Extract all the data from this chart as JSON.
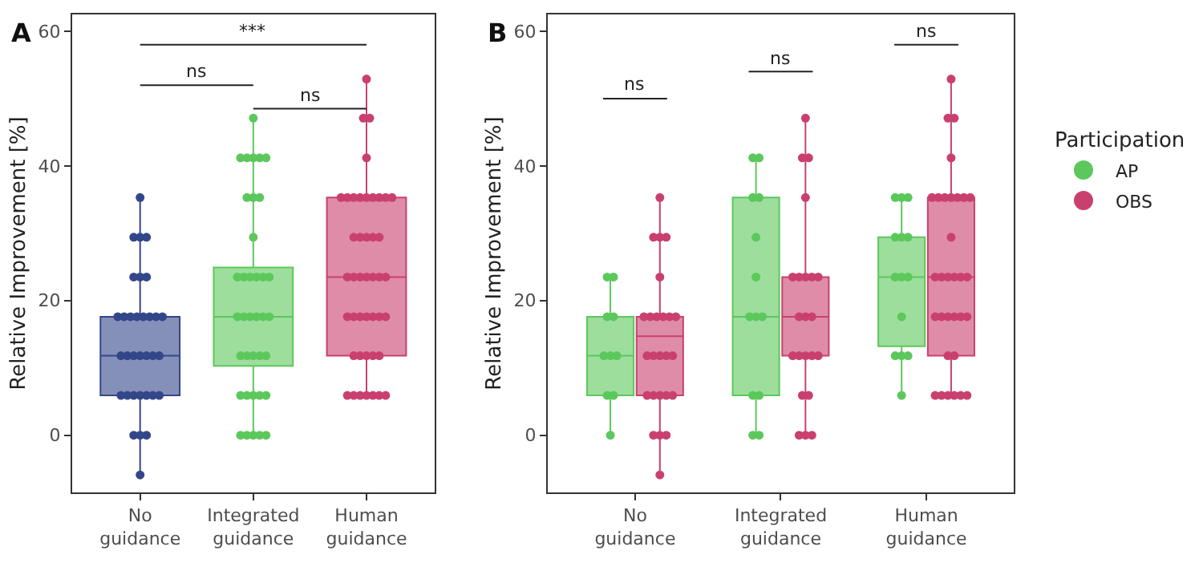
{
  "chart_data": [
    {
      "type": "box",
      "title": "A",
      "ylabel": "Relative Improvement [%]",
      "categories": [
        "No guidance",
        "Integrated guidance",
        "Human guidance"
      ],
      "colors": [
        "#34468a",
        "#5cc85c",
        "#c9406f"
      ],
      "boxes": [
        {
          "low": -5.9,
          "q1": 5.9,
          "median": 11.8,
          "q3": 17.6,
          "high": 35.3
        },
        {
          "low": 0,
          "q1": 10.3,
          "median": 17.6,
          "q3": 24.9,
          "high": 47.1
        },
        {
          "low": 5.9,
          "q1": 11.8,
          "median": 23.5,
          "q3": 35.3,
          "high": 52.9
        }
      ],
      "series": [
        {
          "type": "scatter",
          "color": "#34468a",
          "x": [
            "No guidance",
            "No guidance",
            "No guidance",
            "No guidance",
            "No guidance",
            "No guidance",
            "No guidance",
            "No guidance",
            "No guidance",
            "No guidance",
            "No guidance",
            "No guidance",
            "No guidance",
            "No guidance",
            "No guidance",
            "No guidance",
            "No guidance",
            "No guidance",
            "No guidance",
            "No guidance",
            "No guidance",
            "No guidance",
            "No guidance",
            "No guidance",
            "No guidance",
            "No guidance",
            "No guidance",
            "No guidance",
            "No guidance",
            "No guidance",
            "No guidance",
            "No guidance",
            "No guidance"
          ],
          "values": [
            35.3,
            29.4,
            29.4,
            29.4,
            23.5,
            23.5,
            23.5,
            17.6,
            17.6,
            17.6,
            17.6,
            17.6,
            17.6,
            17.6,
            17.6,
            11.8,
            11.8,
            11.8,
            11.8,
            11.8,
            11.8,
            11.8,
            5.9,
            5.9,
            5.9,
            5.9,
            5.9,
            5.9,
            5.9,
            0,
            0,
            0,
            -5.9
          ]
        },
        {
          "type": "scatter",
          "color": "#5cc85c",
          "x": [
            "Integrated guidance",
            "Integrated guidance",
            "Integrated guidance",
            "Integrated guidance",
            "Integrated guidance",
            "Integrated guidance",
            "Integrated guidance",
            "Integrated guidance",
            "Integrated guidance",
            "Integrated guidance",
            "Integrated guidance",
            "Integrated guidance",
            "Integrated guidance",
            "Integrated guidance",
            "Integrated guidance",
            "Integrated guidance",
            "Integrated guidance",
            "Integrated guidance",
            "Integrated guidance",
            "Integrated guidance",
            "Integrated guidance",
            "Integrated guidance",
            "Integrated guidance",
            "Integrated guidance",
            "Integrated guidance",
            "Integrated guidance",
            "Integrated guidance",
            "Integrated guidance",
            "Integrated guidance",
            "Integrated guidance",
            "Integrated guidance",
            "Integrated guidance",
            "Integrated guidance",
            "Integrated guidance",
            "Integrated guidance",
            "Integrated guidance",
            "Integrated guidance"
          ],
          "values": [
            47.1,
            41.2,
            41.2,
            41.2,
            41.2,
            41.2,
            35.3,
            35.3,
            35.3,
            29.4,
            23.5,
            23.5,
            23.5,
            23.5,
            23.5,
            23.5,
            17.6,
            17.6,
            17.6,
            17.6,
            17.6,
            17.6,
            11.8,
            11.8,
            11.8,
            11.8,
            11.8,
            5.9,
            5.9,
            5.9,
            5.9,
            5.9,
            0,
            0,
            0,
            0,
            0
          ]
        },
        {
          "type": "scatter",
          "color": "#c9406f",
          "x": [
            "Human guidance",
            "Human guidance",
            "Human guidance",
            "Human guidance",
            "Human guidance",
            "Human guidance",
            "Human guidance",
            "Human guidance",
            "Human guidance",
            "Human guidance",
            "Human guidance",
            "Human guidance",
            "Human guidance",
            "Human guidance",
            "Human guidance",
            "Human guidance",
            "Human guidance",
            "Human guidance",
            "Human guidance",
            "Human guidance",
            "Human guidance",
            "Human guidance",
            "Human guidance",
            "Human guidance",
            "Human guidance",
            "Human guidance",
            "Human guidance",
            "Human guidance",
            "Human guidance",
            "Human guidance",
            "Human guidance",
            "Human guidance",
            "Human guidance",
            "Human guidance",
            "Human guidance",
            "Human guidance",
            "Human guidance",
            "Human guidance",
            "Human guidance",
            "Human guidance",
            "Human guidance",
            "Human guidance",
            "Human guidance",
            "Human guidance"
          ],
          "values": [
            52.9,
            47.1,
            47.1,
            41.2,
            35.3,
            35.3,
            35.3,
            35.3,
            35.3,
            35.3,
            35.3,
            35.3,
            35.3,
            29.4,
            29.4,
            29.4,
            29.4,
            29.4,
            23.5,
            23.5,
            23.5,
            23.5,
            23.5,
            23.5,
            23.5,
            17.6,
            17.6,
            17.6,
            17.6,
            17.6,
            17.6,
            17.6,
            11.8,
            11.8,
            11.8,
            11.8,
            11.8,
            5.9,
            5.9,
            5.9,
            5.9,
            5.9,
            5.9,
            5.9
          ]
        }
      ],
      "annotations": [
        "ns",
        "ns",
        "***"
      ],
      "ylim": [
        -8.5,
        62.5
      ],
      "yticks": [
        0,
        20,
        40,
        60
      ]
    },
    {
      "type": "box",
      "title": "B",
      "ylabel": "Relative Improvement [%]",
      "legend_title": "Participation",
      "legend": "right",
      "categories": [
        "No guidance",
        "Integrated guidance",
        "Human guidance"
      ],
      "series": [
        {
          "name": "AP",
          "color": "#5cc85c",
          "boxes": [
            {
              "low": 0,
              "q1": 5.9,
              "median": 11.8,
              "q3": 17.6,
              "high": 23.5
            },
            {
              "low": 0,
              "q1": 5.9,
              "median": 17.6,
              "q3": 35.3,
              "high": 41.2
            },
            {
              "low": 5.9,
              "q1": 13.2,
              "median": 23.5,
              "q3": 29.4,
              "high": 35.3
            }
          ]
        },
        {
          "name": "OBS",
          "color": "#c9406f",
          "boxes": [
            {
              "low": -5.9,
              "q1": 5.9,
              "median": 14.7,
              "q3": 17.6,
              "high": 35.3
            },
            {
              "low": 0,
              "q1": 11.8,
              "median": 17.6,
              "q3": 23.5,
              "high": 47.1
            },
            {
              "low": 5.9,
              "q1": 11.8,
              "median": 23.5,
              "q3": 35.3,
              "high": 52.9
            }
          ]
        },
        {
          "type": "scatter",
          "color": "#5cc85c",
          "x": [
            "No guidance",
            "No guidance",
            "No guidance",
            "No guidance",
            "No guidance",
            "No guidance",
            "No guidance",
            "No guidance",
            "No guidance",
            "No guidance"
          ],
          "values": [
            23.5,
            23.5,
            17.6,
            17.6,
            11.8,
            11.8,
            11.8,
            5.9,
            5.9,
            0
          ]
        },
        {
          "type": "scatter",
          "color": "#5cc85c",
          "x": [
            "Integrated guidance",
            "Integrated guidance",
            "Integrated guidance",
            "Integrated guidance",
            "Integrated guidance",
            "Integrated guidance",
            "Integrated guidance",
            "Integrated guidance",
            "Integrated guidance",
            "Integrated guidance",
            "Integrated guidance",
            "Integrated guidance",
            "Integrated guidance"
          ],
          "values": [
            41.2,
            41.2,
            35.3,
            35.3,
            29.4,
            23.5,
            17.6,
            17.6,
            17.6,
            5.9,
            5.9,
            0,
            0
          ]
        },
        {
          "type": "scatter",
          "color": "#5cc85c",
          "x": [
            "Human guidance",
            "Human guidance",
            "Human guidance",
            "Human guidance",
            "Human guidance",
            "Human guidance",
            "Human guidance",
            "Human guidance",
            "Human guidance",
            "Human guidance",
            "Human guidance",
            "Human guidance",
            "Human guidance",
            "Human guidance"
          ],
          "values": [
            35.3,
            35.3,
            35.3,
            29.4,
            29.4,
            29.4,
            23.5,
            23.5,
            23.5,
            17.6,
            11.8,
            11.8,
            11.8,
            5.9
          ]
        },
        {
          "type": "scatter",
          "color": "#c9406f",
          "x": [
            "No guidance",
            "No guidance",
            "No guidance",
            "No guidance",
            "No guidance",
            "No guidance",
            "No guidance",
            "No guidance",
            "No guidance",
            "No guidance",
            "No guidance",
            "No guidance",
            "No guidance",
            "No guidance",
            "No guidance",
            "No guidance",
            "No guidance",
            "No guidance",
            "No guidance",
            "No guidance",
            "No guidance",
            "No guidance",
            "No guidance",
            "No guidance",
            "No guidance"
          ],
          "values": [
            35.3,
            29.4,
            29.4,
            29.4,
            23.5,
            17.6,
            17.6,
            17.6,
            17.6,
            17.6,
            17.6,
            11.8,
            11.8,
            11.8,
            11.8,
            11.8,
            5.9,
            5.9,
            5.9,
            5.9,
            5.9,
            0,
            0,
            0,
            -5.9
          ]
        },
        {
          "type": "scatter",
          "color": "#c9406f",
          "x": [
            "Integrated guidance",
            "Integrated guidance",
            "Integrated guidance",
            "Integrated guidance",
            "Integrated guidance",
            "Integrated guidance",
            "Integrated guidance",
            "Integrated guidance",
            "Integrated guidance",
            "Integrated guidance",
            "Integrated guidance",
            "Integrated guidance",
            "Integrated guidance",
            "Integrated guidance",
            "Integrated guidance",
            "Integrated guidance",
            "Integrated guidance",
            "Integrated guidance",
            "Integrated guidance",
            "Integrated guidance",
            "Integrated guidance",
            "Integrated guidance"
          ],
          "values": [
            47.1,
            41.2,
            41.2,
            35.3,
            23.5,
            23.5,
            23.5,
            23.5,
            23.5,
            17.6,
            17.6,
            17.6,
            11.8,
            11.8,
            11.8,
            11.8,
            11.8,
            5.9,
            5.9,
            0,
            0,
            0
          ]
        },
        {
          "type": "scatter",
          "color": "#c9406f",
          "x": [
            "Human guidance",
            "Human guidance",
            "Human guidance",
            "Human guidance",
            "Human guidance",
            "Human guidance",
            "Human guidance",
            "Human guidance",
            "Human guidance",
            "Human guidance",
            "Human guidance",
            "Human guidance",
            "Human guidance",
            "Human guidance",
            "Human guidance",
            "Human guidance",
            "Human guidance",
            "Human guidance",
            "Human guidance",
            "Human guidance",
            "Human guidance",
            "Human guidance",
            "Human guidance",
            "Human guidance",
            "Human guidance",
            "Human guidance",
            "Human guidance",
            "Human guidance",
            "Human guidance",
            "Human guidance",
            "Human guidance",
            "Human guidance"
          ],
          "values": [
            52.9,
            47.1,
            47.1,
            41.2,
            35.3,
            35.3,
            35.3,
            35.3,
            35.3,
            35.3,
            35.3,
            29.4,
            23.5,
            23.5,
            23.5,
            23.5,
            23.5,
            23.5,
            17.6,
            17.6,
            17.6,
            17.6,
            17.6,
            17.6,
            11.8,
            11.8,
            5.9,
            5.9,
            5.9,
            5.9,
            5.9,
            5.9
          ]
        }
      ],
      "annotations": [
        "ns",
        "ns",
        "ns"
      ],
      "ylim": [
        -8.5,
        62.5
      ],
      "yticks": [
        0,
        20,
        40,
        60
      ]
    }
  ]
}
